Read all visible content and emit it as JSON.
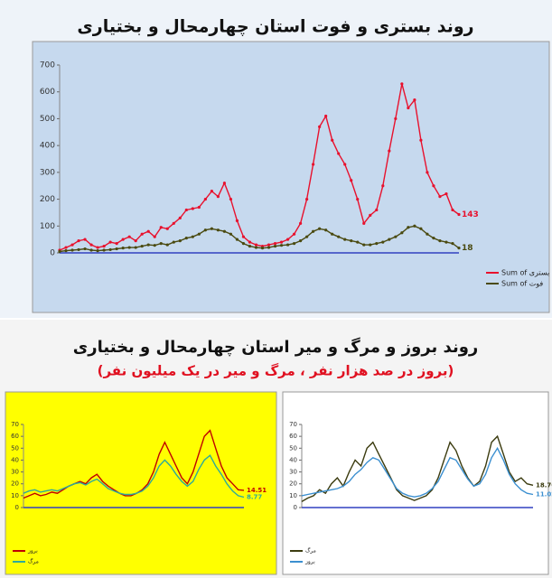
{
  "chart_data": [
    {
      "type": "line",
      "title": "روند بستری و فوت استان چهارمحال و بختیاری",
      "background": "#c6d9ee",
      "markers": true,
      "legend": "bottom-right",
      "ylim": [
        0,
        700
      ],
      "yticks": [
        0,
        100,
        200,
        300,
        400,
        500,
        600,
        700
      ],
      "series": [
        {
          "name": "Sum of بستری",
          "color": "#e8112d",
          "values": [
            10,
            20,
            30,
            45,
            50,
            30,
            20,
            25,
            40,
            35,
            50,
            60,
            45,
            70,
            80,
            60,
            95,
            90,
            110,
            130,
            160,
            165,
            170,
            200,
            230,
            210,
            260,
            200,
            120,
            60,
            40,
            30,
            25,
            30,
            35,
            40,
            50,
            70,
            110,
            200,
            330,
            470,
            510,
            420,
            370,
            330,
            270,
            200,
            110,
            140,
            160,
            250,
            380,
            500,
            630,
            540,
            570,
            420,
            300,
            250,
            210,
            220,
            160,
            143
          ]
        },
        {
          "name": "Sum of فوت",
          "color": "#4a4a10",
          "values": [
            5,
            8,
            10,
            12,
            15,
            10,
            8,
            10,
            12,
            15,
            18,
            20,
            20,
            25,
            30,
            28,
            35,
            30,
            40,
            45,
            55,
            60,
            70,
            85,
            90,
            85,
            80,
            70,
            50,
            35,
            25,
            20,
            18,
            20,
            25,
            28,
            30,
            35,
            45,
            60,
            80,
            90,
            85,
            70,
            60,
            50,
            45,
            40,
            30,
            30,
            35,
            40,
            50,
            60,
            75,
            95,
            100,
            90,
            70,
            55,
            45,
            40,
            35,
            18
          ]
        }
      ]
    },
    {
      "type": "line",
      "title": "روند بروز و مرگ و میر استان چهارمحال و بختیاری",
      "subtitle": "(بروز در صد هزار نفر ، مرگ و میر در یک میلیون نفر)",
      "background": "#ffff00",
      "markers": false,
      "legend": "bottom-left",
      "ylim": [
        0,
        70
      ],
      "yticks": [
        0,
        10,
        20,
        30,
        40,
        50,
        60,
        70
      ],
      "series": [
        {
          "name": "بروز",
          "color": "#c00000",
          "values": [
            8,
            10,
            12,
            10,
            11,
            13,
            12,
            15,
            18,
            20,
            22,
            20,
            25,
            28,
            22,
            18,
            15,
            12,
            10,
            10,
            12,
            15,
            20,
            30,
            45,
            55,
            45,
            35,
            25,
            20,
            30,
            45,
            60,
            65,
            50,
            35,
            25,
            20,
            15,
            14.51
          ]
        },
        {
          "name": "مرگ",
          "color": "#2eaa9a",
          "values": [
            12,
            14,
            15,
            13,
            14,
            15,
            14,
            16,
            18,
            20,
            21,
            19,
            22,
            24,
            20,
            16,
            14,
            12,
            11,
            11,
            12,
            14,
            18,
            25,
            35,
            40,
            35,
            28,
            22,
            18,
            22,
            32,
            40,
            44,
            35,
            28,
            20,
            14,
            10,
            8.77
          ]
        }
      ]
    },
    {
      "type": "line",
      "background": "#ffffff",
      "markers": false,
      "legend": "bottom-left",
      "ylim": [
        0,
        70
      ],
      "yticks": [
        0,
        10,
        20,
        30,
        40,
        50,
        60,
        70
      ],
      "series": [
        {
          "name": "مرگ",
          "color": "#3c3c10",
          "values": [
            5,
            8,
            10,
            15,
            12,
            20,
            25,
            18,
            30,
            40,
            35,
            50,
            55,
            45,
            35,
            25,
            15,
            10,
            8,
            6,
            8,
            10,
            15,
            25,
            40,
            55,
            48,
            35,
            25,
            18,
            22,
            35,
            55,
            60,
            45,
            30,
            22,
            25,
            20,
            18.76
          ]
        },
        {
          "name": "بروز",
          "color": "#3b8fd0",
          "values": [
            10,
            11,
            12,
            13,
            14,
            15,
            16,
            18,
            22,
            28,
            32,
            38,
            42,
            40,
            32,
            24,
            16,
            12,
            10,
            9,
            10,
            12,
            16,
            22,
            32,
            42,
            40,
            32,
            24,
            18,
            20,
            28,
            42,
            50,
            40,
            28,
            20,
            15,
            12,
            11.02
          ]
        }
      ]
    }
  ]
}
